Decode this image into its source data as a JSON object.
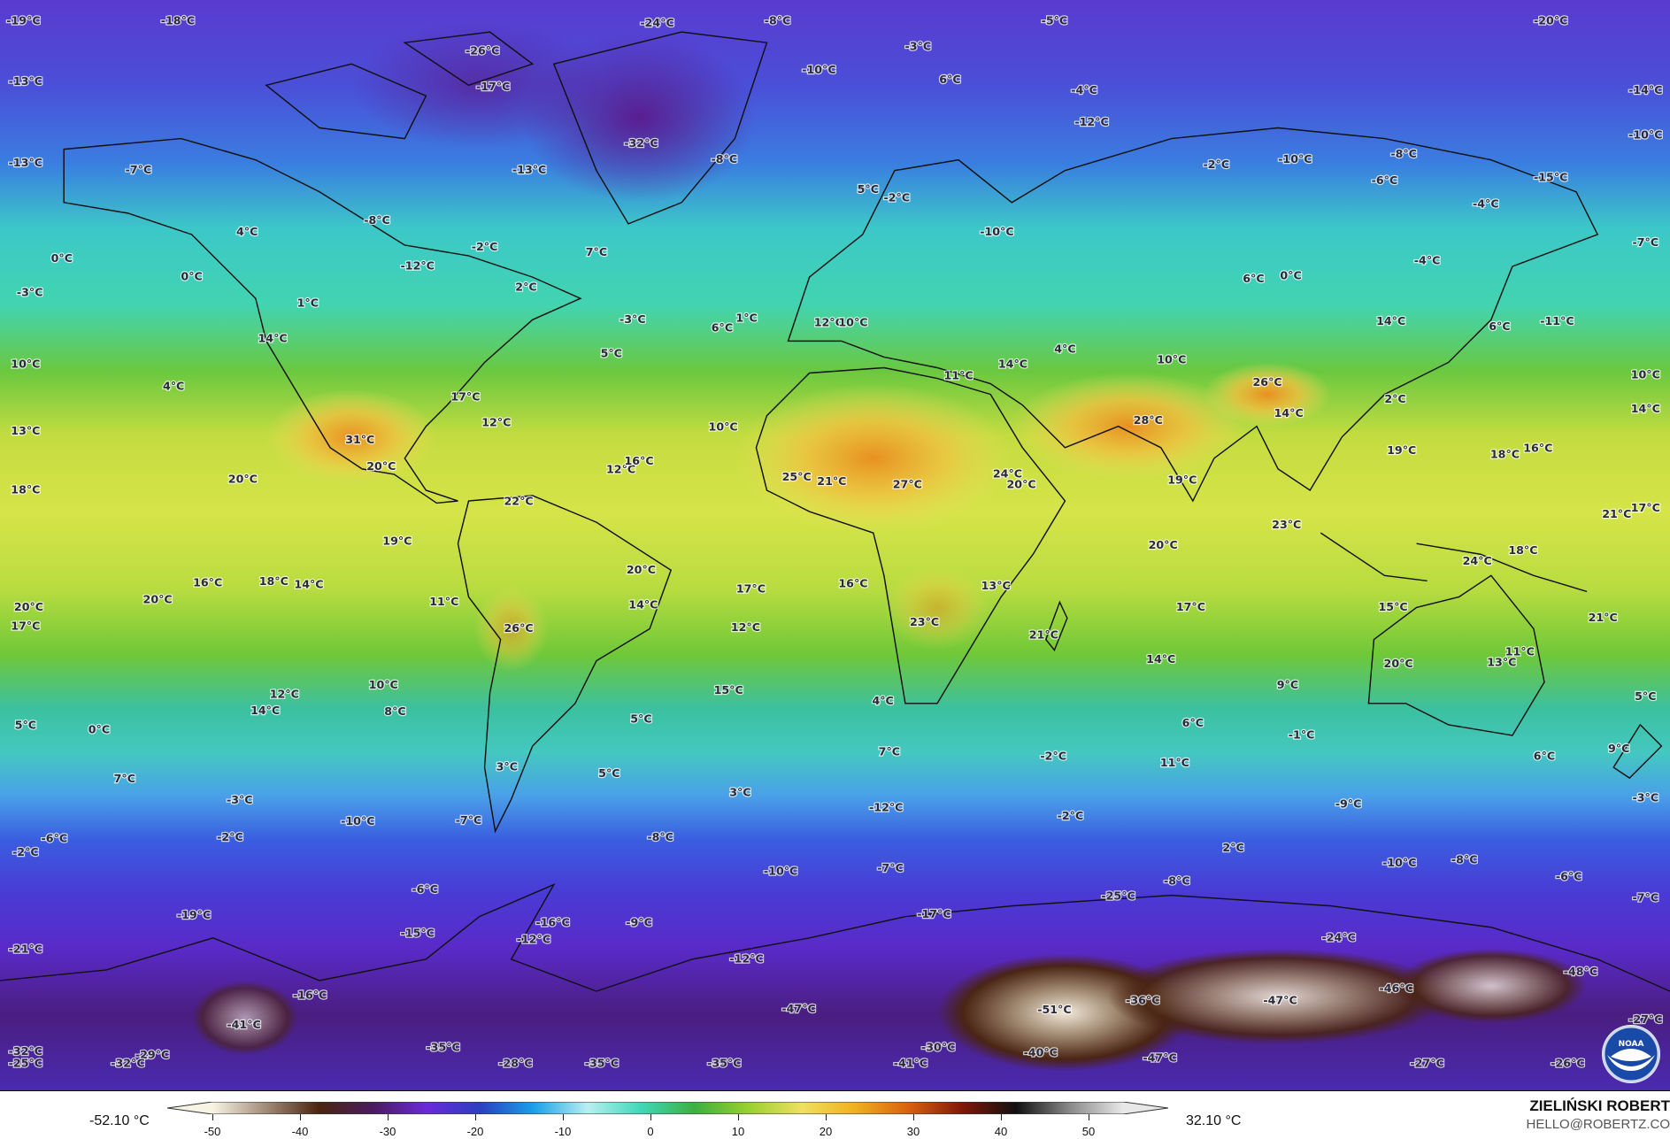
{
  "map": {
    "variable_unit": "°C",
    "labels": [
      "-19°C",
      "-18°C",
      "-24°C",
      "-8°C",
      "-5°C",
      "-20°C",
      "-26°C",
      "-3°C",
      "-13°C",
      "-17°C",
      "-10°C",
      "6°C",
      "-4°C",
      "-14°C",
      "-32°C",
      "-8°C",
      "-12°C",
      "-13°C",
      "-7°C",
      "-13°C",
      "-2°C",
      "-10°C",
      "-8°C",
      "-10°C",
      "-6°C",
      "-15°C",
      "5°C",
      "-2°C",
      "-4°C",
      "4°C",
      "-8°C",
      "-10°C",
      "-7°C",
      "0°C",
      "0°C",
      "-12°C",
      "-2°C",
      "7°C",
      "-4°C",
      "6°C",
      "0°C",
      "-3°C",
      "2°C",
      "1°C",
      "-3°C",
      "6°C",
      "1°C",
      "12°C",
      "10°C",
      "14°C",
      "-11°C",
      "6°C",
      "14°C",
      "5°C",
      "4°C",
      "10°C",
      "11°C",
      "14°C",
      "10°C",
      "10°C",
      "4°C",
      "17°C",
      "26°C",
      "2°C",
      "14°C",
      "14°C",
      "13°C",
      "12°C",
      "10°C",
      "28°C",
      "31°C",
      "19°C",
      "18°C",
      "16°C",
      "20°C",
      "12°C",
      "16°C",
      "20°C",
      "18°C",
      "25°C",
      "21°C",
      "27°C",
      "24°C",
      "20°C",
      "19°C",
      "22°C",
      "17°C",
      "21°C",
      "23°C",
      "19°C",
      "20°C",
      "20°C",
      "24°C",
      "18°C",
      "16°C",
      "18°C",
      "14°C",
      "17°C",
      "16°C",
      "13°C",
      "20°C",
      "11°C",
      "14°C",
      "20°C",
      "17°C",
      "15°C",
      "17°C",
      "21°C",
      "26°C",
      "12°C",
      "23°C",
      "21°C",
      "11°C",
      "20°C",
      "13°C",
      "14°C",
      "12°C",
      "10°C",
      "15°C",
      "9°C",
      "4°C",
      "14°C",
      "8°C",
      "5°C",
      "5°C",
      "0°C",
      "5°C",
      "6°C",
      "-1°C",
      "7°C",
      "-2°C",
      "6°C",
      "9°C",
      "11°C",
      "3°C",
      "5°C",
      "7°C",
      "3°C",
      "-12°C",
      "-2°C",
      "-9°C",
      "-3°C",
      "-3°C",
      "-10°C",
      "-7°C",
      "-6°C",
      "-2°C",
      "-8°C",
      "-2°C",
      "2°C",
      "-10°C",
      "-8°C",
      "-10°C",
      "-7°C",
      "-8°C",
      "-6°C",
      "-6°C",
      "-25°C",
      "-7°C",
      "-16°C",
      "-9°C",
      "-17°C",
      "-19°C",
      "-15°C",
      "-12°C",
      "-24°C",
      "-21°C",
      "-12°C",
      "-48°C",
      "-16°C",
      "-36°C",
      "-47°C",
      "-46°C",
      "-47°C",
      "-51°C",
      "-41°C",
      "-27°C",
      "-35°C",
      "-30°C",
      "-40°C",
      "-47°C",
      "-32°C",
      "-25°C",
      "-29°C",
      "-32°C",
      "-28°C",
      "-35°C",
      "-35°C",
      "-41°C",
      "-27°C",
      "-26°C"
    ]
  },
  "legend": {
    "min_label": "-52.10 °C",
    "max_label": "32.10 °C",
    "ticks": [
      "-50",
      "-40",
      "-30",
      "-20",
      "-10",
      "0",
      "10",
      "20",
      "30",
      "40",
      "50"
    ],
    "colors": [
      "#f8f4e4",
      "#a08a78",
      "#4a2410",
      "#4a1c60",
      "#6a2ad8",
      "#2a40c0",
      "#1aa0e8",
      "#b8f0f0",
      "#40d8b8",
      "#3cb040",
      "#98d030",
      "#f0e060",
      "#f0b020",
      "#d86010",
      "#801808",
      "#101010",
      "#888888",
      "#e8e8e8"
    ]
  },
  "credit": {
    "author": "ZIELIŃSKI ROBERT",
    "email": "HELLO@ROBERTZ.CO",
    "logo_text": "NOAA"
  }
}
